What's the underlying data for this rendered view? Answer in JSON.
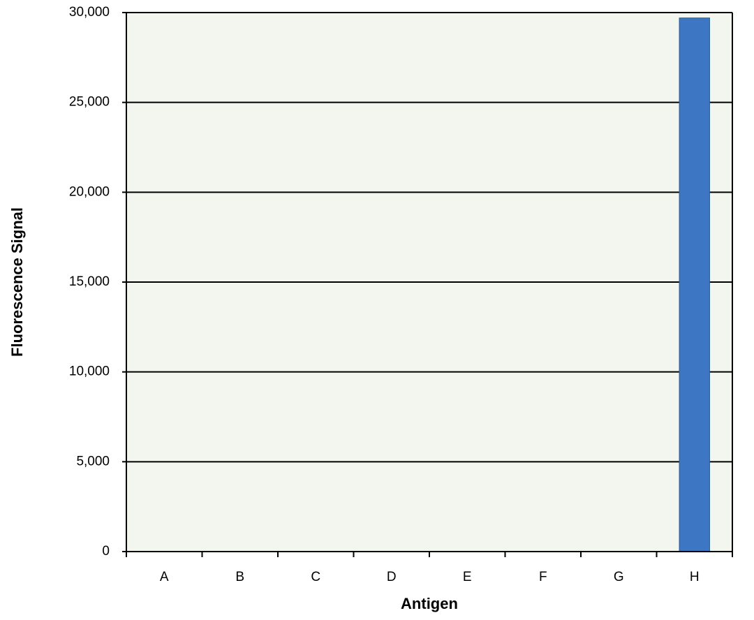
{
  "chart_data": {
    "type": "bar",
    "x_label": "Antigen",
    "y_label": "Fluorescence Signal",
    "categories": [
      "A",
      "B",
      "C",
      "D",
      "E",
      "F",
      "G",
      "H"
    ],
    "values": [
      0,
      0,
      0,
      0,
      0,
      0,
      0,
      29700
    ],
    "color": "#3d76c2",
    "ylim": [
      0,
      30000
    ],
    "yticks": [
      0,
      {
        "value": 5000,
        "label": "5,000"
      },
      {
        "value": 10000,
        "label": "10,000"
      },
      {
        "value": 15000,
        "label": "15,000"
      },
      {
        "value": 20000,
        "label": "20,000"
      },
      {
        "value": 25000,
        "label": "25,000"
      },
      {
        "value": 30000,
        "label": "30,000"
      }
    ],
    "grid": true,
    "plot_background": "#f3f6ee"
  }
}
